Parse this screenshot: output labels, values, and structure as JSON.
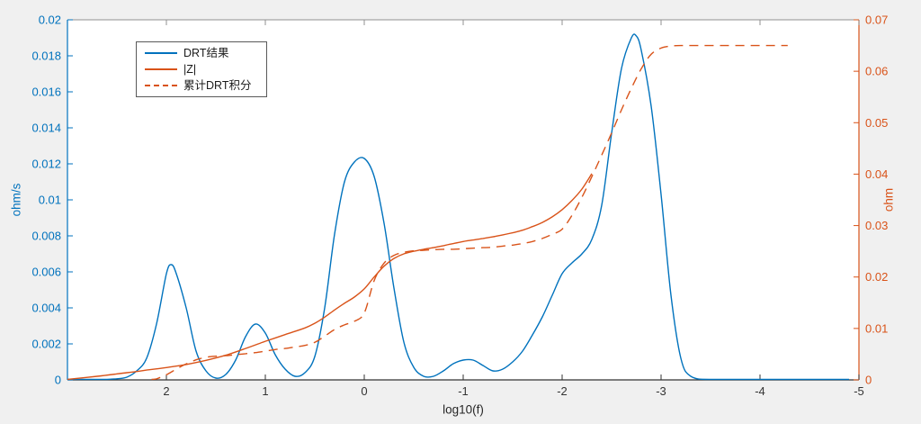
{
  "figure": {
    "background_color": "#f0f0f0",
    "plot_background_color": "#ffffff",
    "box_top_color": "#909090",
    "x_axis_color": "#333333"
  },
  "legend": {
    "items": [
      {
        "label": "DRT结果",
        "color": "#0072bd",
        "style": "solid"
      },
      {
        "label": "|Z|",
        "color": "#d95319",
        "style": "solid"
      },
      {
        "label": "累计DRT积分",
        "color": "#d95319",
        "style": "dashed"
      }
    ]
  },
  "chart_data": {
    "type": "line",
    "title": "",
    "xlabel": "log10(f)",
    "grid": false,
    "legend_position": "top-left-inside",
    "x_axis": {
      "range": [
        3,
        -5
      ],
      "reversed": true,
      "tick_labels": [
        "2",
        "1",
        "0",
        "-1",
        "-2",
        "-3",
        "-4",
        "-5"
      ],
      "color": "#333333"
    },
    "y_left": {
      "label": "ohm/s",
      "range": [
        0,
        0.02
      ],
      "tick_labels": [
        "0",
        "0.002",
        "0.004",
        "0.006",
        "0.008",
        "0.01",
        "0.012",
        "0.014",
        "0.016",
        "0.018",
        "0.02"
      ],
      "color": "#0072bd"
    },
    "y_right": {
      "label": "ohm",
      "range": [
        0,
        0.07
      ],
      "tick_labels": [
        "0",
        "0.01",
        "0.02",
        "0.03",
        "0.04",
        "0.05",
        "0.06",
        "0.07"
      ],
      "color": "#d95319"
    },
    "series": [
      {
        "name": "DRT结果",
        "axis": "left",
        "color": "#0072bd",
        "style": "solid",
        "points": [
          [
            3.0,
            0
          ],
          [
            2.8,
            0
          ],
          [
            2.6,
            3e-05
          ],
          [
            2.5,
            6e-05
          ],
          [
            2.4,
            0.00015
          ],
          [
            2.3,
            0.0005
          ],
          [
            2.2,
            0.0012
          ],
          [
            2.1,
            0.0031
          ],
          [
            2.0,
            0.0059
          ],
          [
            1.95,
            0.0064
          ],
          [
            1.9,
            0.0059
          ],
          [
            1.8,
            0.004
          ],
          [
            1.7,
            0.0016
          ],
          [
            1.6,
            0.0005
          ],
          [
            1.5,
            0.0001
          ],
          [
            1.4,
            0.0003
          ],
          [
            1.3,
            0.0011
          ],
          [
            1.2,
            0.0024
          ],
          [
            1.1,
            0.0031
          ],
          [
            1.0,
            0.0026
          ],
          [
            0.9,
            0.0014
          ],
          [
            0.8,
            0.0006
          ],
          [
            0.7,
            0.0002
          ],
          [
            0.6,
            0.0004
          ],
          [
            0.5,
            0.0013
          ],
          [
            0.4,
            0.004
          ],
          [
            0.3,
            0.0081
          ],
          [
            0.2,
            0.011
          ],
          [
            0.1,
            0.0121
          ],
          [
            0.0,
            0.0123
          ],
          [
            -0.1,
            0.0113
          ],
          [
            -0.2,
            0.0087
          ],
          [
            -0.3,
            0.0051
          ],
          [
            -0.4,
            0.0021
          ],
          [
            -0.5,
            0.0007
          ],
          [
            -0.6,
            0.0002
          ],
          [
            -0.7,
            0.0002
          ],
          [
            -0.8,
            0.0005
          ],
          [
            -0.9,
            0.0009
          ],
          [
            -1.0,
            0.0011
          ],
          [
            -1.1,
            0.0011
          ],
          [
            -1.2,
            0.0008
          ],
          [
            -1.3,
            0.0005
          ],
          [
            -1.4,
            0.0006
          ],
          [
            -1.5,
            0.001
          ],
          [
            -1.6,
            0.0016
          ],
          [
            -1.7,
            0.0025
          ],
          [
            -1.8,
            0.0035
          ],
          [
            -1.9,
            0.0047
          ],
          [
            -2.0,
            0.0059
          ],
          [
            -2.1,
            0.0065
          ],
          [
            -2.2,
            0.007
          ],
          [
            -2.3,
            0.0078
          ],
          [
            -2.4,
            0.0097
          ],
          [
            -2.5,
            0.0137
          ],
          [
            -2.6,
            0.0173
          ],
          [
            -2.7,
            0.019
          ],
          [
            -2.75,
            0.0191
          ],
          [
            -2.8,
            0.0183
          ],
          [
            -2.9,
            0.0152
          ],
          [
            -3.0,
            0.0103
          ],
          [
            -3.1,
            0.0047
          ],
          [
            -3.2,
            0.0012
          ],
          [
            -3.3,
            0.0002
          ],
          [
            -3.5,
            0
          ],
          [
            -4.0,
            0
          ],
          [
            -4.5,
            0
          ],
          [
            -4.9,
            0
          ]
        ]
      },
      {
        "name": "|Z|",
        "axis": "right",
        "color": "#d95319",
        "style": "solid",
        "points": [
          [
            3.0,
            0.0001
          ],
          [
            2.7,
            0.0007
          ],
          [
            2.4,
            0.0014
          ],
          [
            2.2,
            0.0019
          ],
          [
            2.0,
            0.0024
          ],
          [
            1.8,
            0.003
          ],
          [
            1.6,
            0.0038
          ],
          [
            1.4,
            0.0048
          ],
          [
            1.2,
            0.0061
          ],
          [
            1.0,
            0.0075
          ],
          [
            0.8,
            0.0088
          ],
          [
            0.6,
            0.0101
          ],
          [
            0.5,
            0.011
          ],
          [
            0.4,
            0.0122
          ],
          [
            0.3,
            0.0136
          ],
          [
            0.2,
            0.0149
          ],
          [
            0.1,
            0.0161
          ],
          [
            0.0,
            0.0177
          ],
          [
            -0.1,
            0.02
          ],
          [
            -0.2,
            0.0221
          ],
          [
            -0.3,
            0.0236
          ],
          [
            -0.4,
            0.0245
          ],
          [
            -0.5,
            0.025
          ],
          [
            -0.6,
            0.0254
          ],
          [
            -0.7,
            0.0257
          ],
          [
            -0.8,
            0.0261
          ],
          [
            -0.9,
            0.0265
          ],
          [
            -1.0,
            0.0269
          ],
          [
            -1.1,
            0.0272
          ],
          [
            -1.2,
            0.0275
          ],
          [
            -1.3,
            0.0278
          ],
          [
            -1.4,
            0.0282
          ],
          [
            -1.5,
            0.0286
          ],
          [
            -1.6,
            0.0291
          ],
          [
            -1.7,
            0.0298
          ],
          [
            -1.8,
            0.0306
          ],
          [
            -1.9,
            0.0317
          ],
          [
            -2.0,
            0.0331
          ],
          [
            -2.1,
            0.0349
          ],
          [
            -2.2,
            0.0371
          ],
          [
            -2.3,
            0.0401
          ]
        ]
      },
      {
        "name": "累计DRT积分",
        "axis": "right",
        "color": "#d95319",
        "style": "dashed",
        "points": [
          [
            2.15,
            0
          ],
          [
            2.1,
            0.0002
          ],
          [
            2.0,
            0.001
          ],
          [
            1.9,
            0.0021
          ],
          [
            1.8,
            0.0031
          ],
          [
            1.7,
            0.0039
          ],
          [
            1.6,
            0.0044
          ],
          [
            1.5,
            0.0046
          ],
          [
            1.4,
            0.0047
          ],
          [
            1.3,
            0.0049
          ],
          [
            1.2,
            0.0051
          ],
          [
            1.1,
            0.0053
          ],
          [
            1.0,
            0.0056
          ],
          [
            0.9,
            0.0059
          ],
          [
            0.8,
            0.0061
          ],
          [
            0.7,
            0.0064
          ],
          [
            0.6,
            0.0067
          ],
          [
            0.5,
            0.0073
          ],
          [
            0.4,
            0.0085
          ],
          [
            0.3,
            0.0098
          ],
          [
            0.2,
            0.0107
          ],
          [
            0.1,
            0.0114
          ],
          [
            0.0,
            0.013
          ],
          [
            -0.1,
            0.0193
          ],
          [
            -0.2,
            0.0227
          ],
          [
            -0.3,
            0.0242
          ],
          [
            -0.4,
            0.0248
          ],
          [
            -0.5,
            0.0251
          ],
          [
            -0.6,
            0.0252
          ],
          [
            -0.7,
            0.0253
          ],
          [
            -0.8,
            0.0254
          ],
          [
            -0.9,
            0.0254
          ],
          [
            -1.0,
            0.0255
          ],
          [
            -1.1,
            0.0256
          ],
          [
            -1.2,
            0.0257
          ],
          [
            -1.3,
            0.0258
          ],
          [
            -1.4,
            0.026
          ],
          [
            -1.5,
            0.0262
          ],
          [
            -1.6,
            0.0265
          ],
          [
            -1.7,
            0.0269
          ],
          [
            -1.8,
            0.0275
          ],
          [
            -1.9,
            0.0283
          ],
          [
            -2.0,
            0.0293
          ],
          [
            -2.1,
            0.032
          ],
          [
            -2.2,
            0.0355
          ],
          [
            -2.3,
            0.0395
          ],
          [
            -2.4,
            0.0437
          ],
          [
            -2.5,
            0.048
          ],
          [
            -2.6,
            0.0525
          ],
          [
            -2.7,
            0.0567
          ],
          [
            -2.8,
            0.0605
          ],
          [
            -2.9,
            0.0633
          ],
          [
            -3.0,
            0.0645
          ],
          [
            -3.1,
            0.0649
          ],
          [
            -3.2,
            0.065
          ],
          [
            -3.5,
            0.065
          ],
          [
            -4.0,
            0.065
          ],
          [
            -4.28,
            0.065
          ]
        ]
      }
    ]
  }
}
